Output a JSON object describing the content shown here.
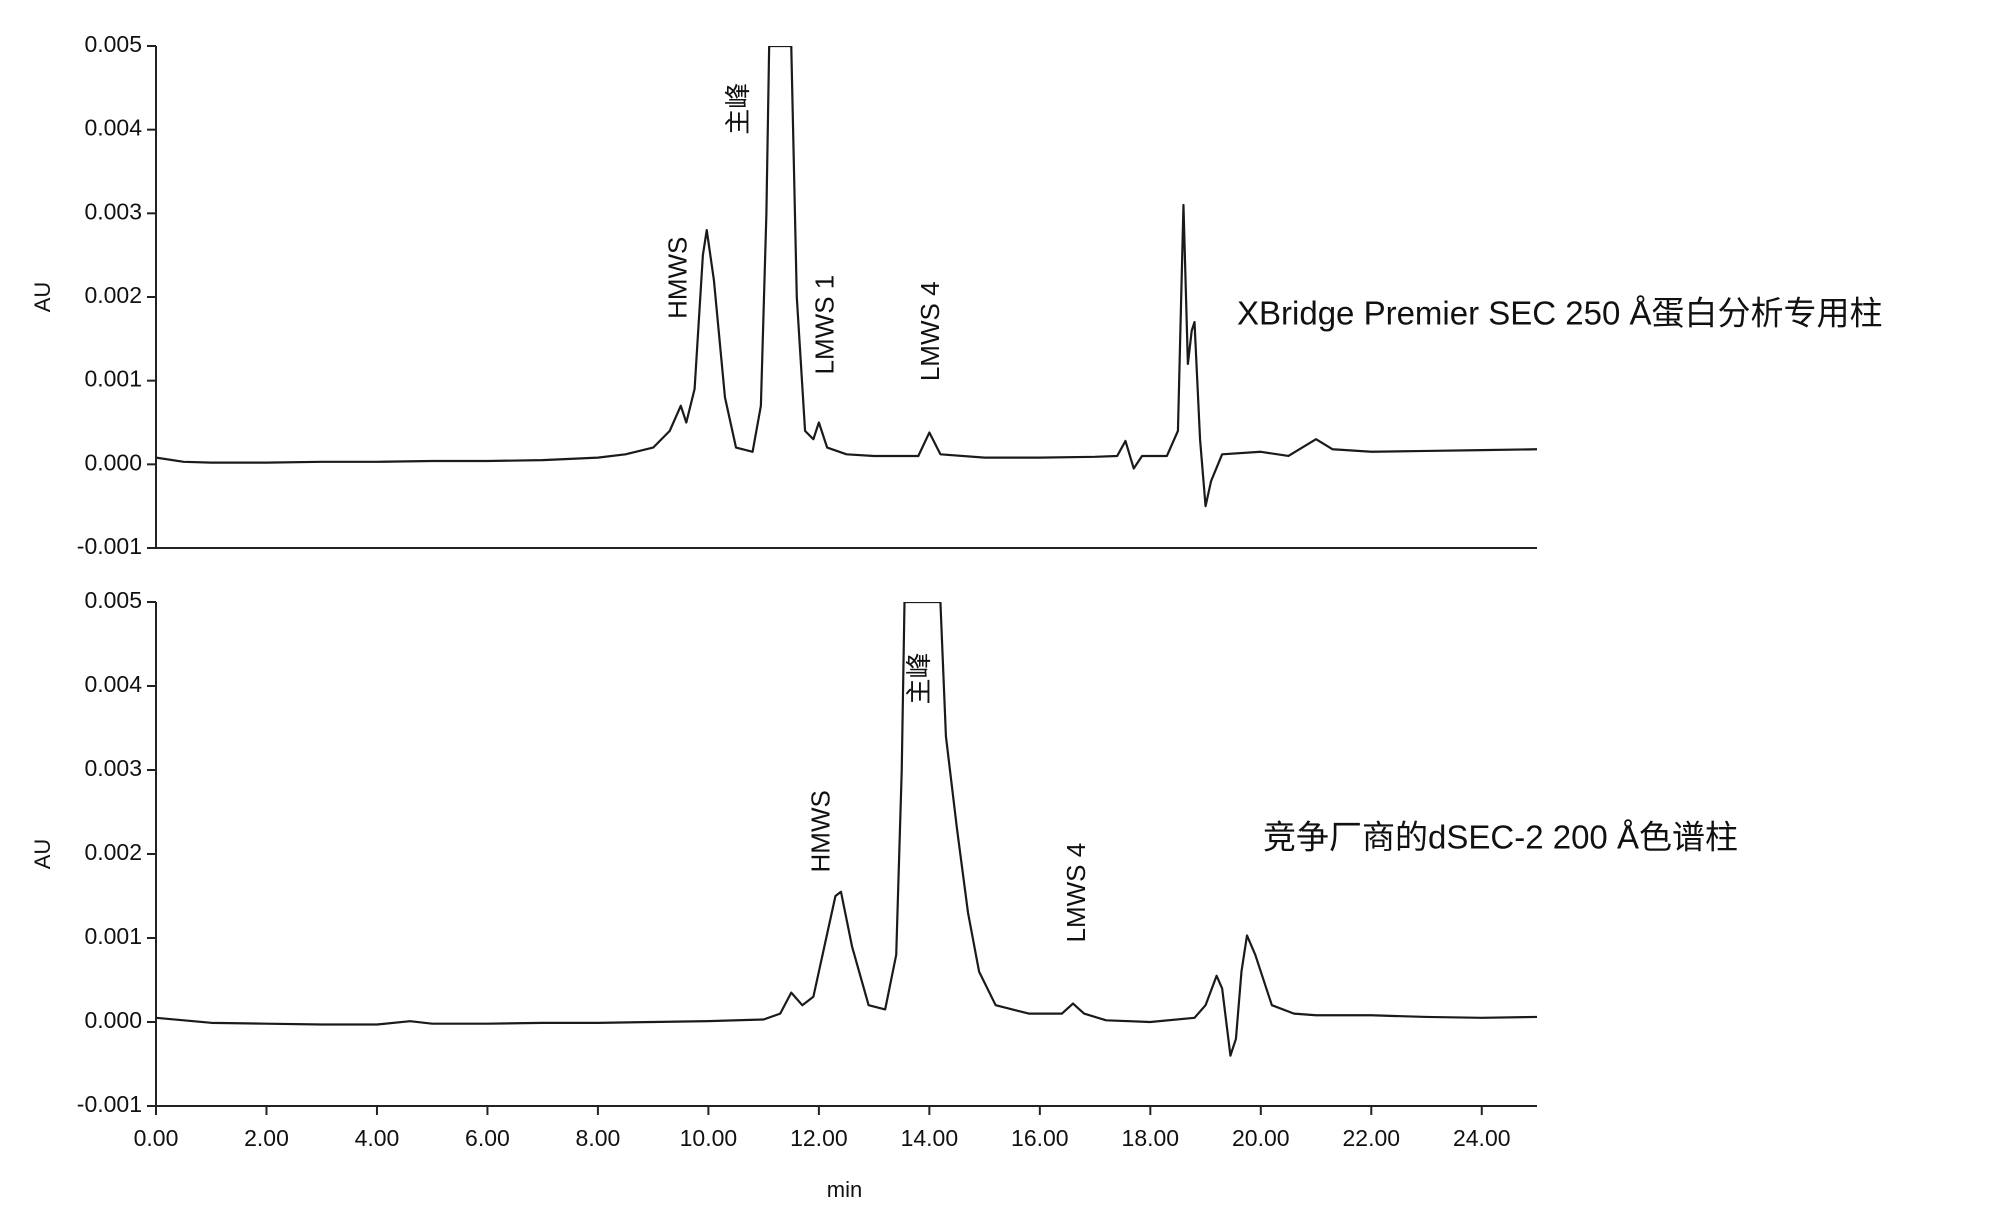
{
  "chart_data": [
    {
      "type": "line",
      "label": "XBridge Premier SEC 250 Å蛋白分析专用柱",
      "ylabel": "AU",
      "color": "#1a1a1a",
      "xlim": [
        0,
        25
      ],
      "ylim": [
        -0.001,
        0.005
      ],
      "yticks": [
        -0.001,
        {
          "value": 0,
          "label": "0.000"
        },
        0.001,
        0.002,
        0.003,
        0.004,
        0.005
      ],
      "x": [
        0,
        0.5,
        1,
        2,
        3,
        4,
        5,
        6,
        7,
        8,
        8.5,
        9,
        9.3,
        9.5,
        9.6,
        9.75,
        9.9,
        9.97,
        10.1,
        10.3,
        10.5,
        10.8,
        10.95,
        11.05,
        11.1,
        11.5,
        11.6,
        11.75,
        11.9,
        12.0,
        12.15,
        12.5,
        13,
        13.8,
        14.0,
        14.2,
        15,
        16,
        17,
        17.4,
        17.55,
        17.7,
        17.85,
        18.3,
        18.5,
        18.6,
        18.68,
        18.75,
        18.8,
        18.9,
        19.0,
        19.1,
        19.3,
        20,
        20.5,
        21.0,
        21.3,
        22,
        23,
        24,
        25
      ],
      "values": [
        8e-05,
        3e-05,
        2e-05,
        2e-05,
        3e-05,
        3e-05,
        4e-05,
        4e-05,
        5e-05,
        8e-05,
        0.00012,
        0.0002,
        0.0004,
        0.0007,
        0.0005,
        0.0009,
        0.0025,
        0.0028,
        0.0022,
        0.0008,
        0.0002,
        0.00015,
        0.0007,
        0.003,
        0.005,
        0.005,
        0.002,
        0.0004,
        0.0003,
        0.0005,
        0.0002,
        0.00012,
        0.0001,
        0.0001,
        0.00038,
        0.00012,
        8e-05,
        8e-05,
        9e-05,
        0.0001,
        0.00028,
        -5e-05,
        0.0001,
        0.0001,
        0.0004,
        0.0031,
        0.0012,
        0.0016,
        0.0017,
        0.0003,
        -0.0005,
        -0.0002,
        0.00012,
        0.00015,
        0.0001,
        0.0003,
        0.00018,
        0.00015,
        0.00016,
        0.00017,
        0.00018
      ],
      "annotations": [
        {
          "text": "HMWS",
          "x": 9.48,
          "y": 0.00223
        },
        {
          "text": "主峰",
          "x": 10.57,
          "y": 0.00425
        },
        {
          "text": "LMWS 1",
          "x": 12.14,
          "y": 0.00167
        },
        {
          "text": "LMWS 4",
          "x": 14.05,
          "y": 0.00159
        }
      ]
    },
    {
      "type": "line",
      "label": "竞争厂商的dSEC-2 200 Å色谱柱",
      "ylabel": "AU",
      "xlabel": "min",
      "color": "#1a1a1a",
      "xlim": [
        0,
        25
      ],
      "ylim": [
        -0.001,
        0.005
      ],
      "yticks": [
        -0.001,
        {
          "value": 0,
          "label": "0.000"
        },
        0.001,
        0.002,
        0.003,
        0.004,
        0.005
      ],
      "xticks": [
        {
          "value": 0,
          "label": "0.00"
        },
        {
          "value": 2,
          "label": "2.00"
        },
        {
          "value": 4,
          "label": "4.00"
        },
        {
          "value": 6,
          "label": "6.00"
        },
        {
          "value": 8,
          "label": "8.00"
        },
        {
          "value": 10,
          "label": "10.00"
        },
        {
          "value": 12,
          "label": "12.00"
        },
        {
          "value": 14,
          "label": "14.00"
        },
        {
          "value": 16,
          "label": "16.00"
        },
        {
          "value": 18,
          "label": "18.00"
        },
        {
          "value": 20,
          "label": "20.00"
        },
        {
          "value": 22,
          "label": "22.00"
        },
        {
          "value": 24,
          "label": "24.00"
        }
      ],
      "x": [
        0,
        1,
        2,
        3,
        4,
        4.6,
        5,
        6,
        7,
        8,
        9,
        10,
        11,
        11.3,
        11.5,
        11.7,
        11.9,
        12.1,
        12.3,
        12.4,
        12.6,
        12.9,
        13.2,
        13.4,
        13.5,
        13.55,
        14.2,
        14.3,
        14.5,
        14.7,
        14.9,
        15.2,
        15.8,
        16.4,
        16.6,
        16.8,
        17.2,
        18,
        18.8,
        19.0,
        19.2,
        19.3,
        19.45,
        19.55,
        19.65,
        19.75,
        19.9,
        20.2,
        20.6,
        21,
        22,
        23,
        24,
        25
      ],
      "values": [
        5e-05,
        -1e-05,
        -2e-05,
        -3e-05,
        -3e-05,
        1e-05,
        -2e-05,
        -2e-05,
        -1e-05,
        -1e-05,
        0,
        1e-05,
        3e-05,
        0.0001,
        0.00035,
        0.0002,
        0.0003,
        0.0009,
        0.0015,
        0.00155,
        0.0009,
        0.0002,
        0.00015,
        0.0008,
        0.003,
        0.005,
        0.005,
        0.0034,
        0.0023,
        0.0013,
        0.0006,
        0.0002,
        0.0001,
        0.0001,
        0.00022,
        0.0001,
        2e-05,
        0,
        5e-05,
        0.0002,
        0.00055,
        0.0004,
        -0.0004,
        -0.0002,
        0.0006,
        0.00103,
        0.0008,
        0.0002,
        0.0001,
        8e-05,
        8e-05,
        6e-05,
        5e-05,
        6e-05
      ],
      "annotations": [
        {
          "text": "主峰",
          "x": 13.85,
          "y": 0.00409
        },
        {
          "text": "HMWS",
          "x": 12.07,
          "y": 0.00227
        },
        {
          "text": "LMWS 4",
          "x": 16.69,
          "y": 0.00154
        }
      ]
    }
  ]
}
